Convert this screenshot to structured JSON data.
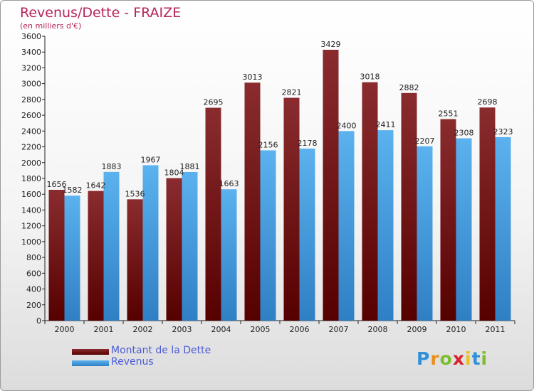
{
  "chart_data": {
    "type": "bar",
    "title": "Revenus/Dette - FRAIZE",
    "subtitle": "(en milliers d'€)",
    "categories": [
      "2000",
      "2001",
      "2002",
      "2003",
      "2004",
      "2005",
      "2006",
      "2007",
      "2008",
      "2009",
      "2010",
      "2011"
    ],
    "series": [
      {
        "name": "Montant de la Dette",
        "values": [
          1656,
          1642,
          1536,
          1804,
          2695,
          3013,
          2821,
          3429,
          3018,
          2882,
          2551,
          2698
        ],
        "color": "#7a1f22"
      },
      {
        "name": "Revenus",
        "values": [
          1582,
          1883,
          1967,
          1881,
          1663,
          2156,
          2178,
          2400,
          2411,
          2207,
          2308,
          2323
        ],
        "color": "#4ea6e6"
      }
    ],
    "value_labels": [
      [
        "1656",
        "1642",
        "1536",
        "1804",
        "2695",
        "3013",
        "2821",
        "3429",
        "3018",
        "2882",
        "2551",
        "2698"
      ],
      [
        "1582",
        "1883",
        "1967",
        "1881",
        "1663",
        "2156",
        "2178",
        "2400",
        "2411",
        "2207",
        "2308",
        "2323"
      ]
    ],
    "yticks": [
      "0",
      "200",
      "400",
      "600",
      "800",
      "1000",
      "1200",
      "1400",
      "1600",
      "1800",
      "2000",
      "2200",
      "2400",
      "2600",
      "2800",
      "3000",
      "3200",
      "3400",
      "3600"
    ],
    "ylim": [
      0,
      3600
    ],
    "grid": false,
    "legend": "bottom-left"
  },
  "logo": {
    "letters": [
      "P",
      "r",
      "o",
      "x",
      "i",
      "t",
      "i"
    ],
    "colors": [
      "#2f8fd8",
      "#e8901f",
      "#7abf2a",
      "#d8232a",
      "#e8c21f",
      "#2f8fd8",
      "#7abf2a"
    ]
  }
}
